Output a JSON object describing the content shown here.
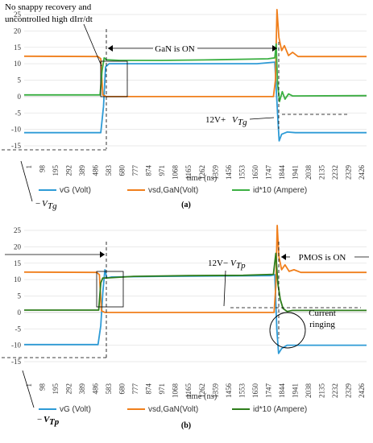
{
  "chart_data": [
    {
      "type": "line",
      "caption": "(a)",
      "xlabel": "time (ns)",
      "ylabel": "",
      "ylim": [
        -15,
        25
      ],
      "yticks": [
        -15,
        -10,
        -5,
        0,
        5,
        10,
        15,
        20,
        25
      ],
      "xticks": [
        "1",
        "98",
        "195",
        "292",
        "389",
        "486",
        "583",
        "680",
        "777",
        "874",
        "971",
        "1068",
        "1165",
        "1262",
        "1359",
        "1456",
        "1553",
        "1650",
        "1747",
        "1844",
        "1941",
        "2038",
        "2135",
        "2232",
        "2329",
        "2426"
      ],
      "legend_position": "bottom",
      "grid": "horizontal",
      "series": [
        {
          "name": "vG (Volt)",
          "color": "#2e9bd6",
          "points": [
            [
              1,
              -11
            ],
            [
              560,
              -11
            ],
            [
              580,
              -3
            ],
            [
              595,
              9
            ],
            [
              620,
              10
            ],
            [
              700,
              10
            ],
            [
              1400,
              10
            ],
            [
              1700,
              10
            ],
            [
              1830,
              10.5
            ],
            [
              1850,
              -5
            ],
            [
              1862,
              -13.5
            ],
            [
              1880,
              -11.5
            ],
            [
              1920,
              -10.8
            ],
            [
              1980,
              -11
            ],
            [
              2500,
              -11
            ]
          ]
        },
        {
          "name": "vsd,GaN(Volt)",
          "color": "#f07f1c",
          "points": [
            [
              1,
              12.3
            ],
            [
              540,
              12.2
            ],
            [
              560,
              11.5
            ],
            [
              575,
              0.5
            ],
            [
              600,
              0
            ],
            [
              1000,
              0
            ],
            [
              1820,
              0
            ],
            [
              1835,
              5
            ],
            [
              1846,
              26.5
            ],
            [
              1860,
              18
            ],
            [
              1880,
              14
            ],
            [
              1900,
              15.5
            ],
            [
              1930,
              12.5
            ],
            [
              1960,
              13.5
            ],
            [
              2000,
              12.2
            ],
            [
              2500,
              12.2
            ]
          ]
        },
        {
          "name": "id*10 (Ampere)",
          "color": "#3cb043",
          "points": [
            [
              1,
              0.5
            ],
            [
              555,
              0.5
            ],
            [
              570,
              8
            ],
            [
              585,
              11.8
            ],
            [
              600,
              11.2
            ],
            [
              700,
              11
            ],
            [
              1000,
              11
            ],
            [
              1400,
              11.2
            ],
            [
              1780,
              11.5
            ],
            [
              1830,
              11.8
            ],
            [
              1840,
              16
            ],
            [
              1850,
              4
            ],
            [
              1865,
              -1.5
            ],
            [
              1885,
              1.5
            ],
            [
              1905,
              -0.8
            ],
            [
              1930,
              0.8
            ],
            [
              1960,
              0.2
            ],
            [
              2500,
              0.3
            ]
          ]
        }
      ],
      "annotations": [
        "No snappy recovery and",
        "uncontrolled high dIrr/dt",
        "GaN is ON",
        "12V+",
        "−"
      ],
      "annotation_symbol": "VTg",
      "annotation_subscript": "Tg"
    },
    {
      "type": "line",
      "caption": "(b)",
      "xlabel": "time (ns)",
      "ylabel": "",
      "ylim": [
        -15,
        25
      ],
      "yticks": [
        -15,
        -10,
        -5,
        0,
        5,
        10,
        15,
        20,
        25
      ],
      "xticks": [
        "1",
        "98",
        "195",
        "292",
        "389",
        "486",
        "583",
        "680",
        "777",
        "874",
        "971",
        "1068",
        "1165",
        "1262",
        "1359",
        "1456",
        "1553",
        "1650",
        "1747",
        "1844",
        "1941",
        "2038",
        "2135",
        "2232",
        "2329",
        "2426"
      ],
      "legend_position": "bottom",
      "grid": "horizontal",
      "series": [
        {
          "name": "vG (Volt)",
          "color": "#2e9bd6",
          "points": [
            [
              1,
              -9.8
            ],
            [
              540,
              -9.8
            ],
            [
              560,
              -4
            ],
            [
              575,
              6
            ],
            [
              590,
              13
            ],
            [
              605,
              10.5
            ],
            [
              640,
              10.8
            ],
            [
              1000,
              11
            ],
            [
              1800,
              11.2
            ],
            [
              1830,
              11.5
            ],
            [
              1845,
              -5
            ],
            [
              1858,
              -12.5
            ],
            [
              1880,
              -11
            ],
            [
              1920,
              -10
            ],
            [
              1980,
              -10
            ],
            [
              2500,
              -10
            ]
          ]
        },
        {
          "name": "vsd,GaN(Volt)",
          "color": "#f07f1c",
          "points": [
            [
              1,
              12.3
            ],
            [
              530,
              12.2
            ],
            [
              550,
              11.5
            ],
            [
              565,
              0.5
            ],
            [
              590,
              0
            ],
            [
              1000,
              0
            ],
            [
              1825,
              0
            ],
            [
              1838,
              8
            ],
            [
              1848,
              26.5
            ],
            [
              1860,
              17
            ],
            [
              1880,
              13
            ],
            [
              1905,
              14.5
            ],
            [
              1935,
              12.5
            ],
            [
              1970,
              13
            ],
            [
              2020,
              12.2
            ],
            [
              2500,
              12.2
            ]
          ]
        },
        {
          "name": "id*10 (Ampere)",
          "color": "#2e7d1b",
          "points": [
            [
              1,
              0.7
            ],
            [
              545,
              0.7
            ],
            [
              560,
              9
            ],
            [
              575,
              10.5
            ],
            [
              600,
              10.5
            ],
            [
              800,
              11
            ],
            [
              1200,
              11.2
            ],
            [
              1600,
              11.3
            ],
            [
              1820,
              11.6
            ],
            [
              1838,
              18
            ],
            [
              1852,
              9
            ],
            [
              1870,
              4
            ],
            [
              1890,
              1.2
            ],
            [
              1920,
              0.3
            ],
            [
              1960,
              0.6
            ],
            [
              2500,
              0.6
            ]
          ]
        }
      ],
      "annotations": [
        "12V",
        "PMOS is ON",
        "Current",
        "ringing",
        "−"
      ],
      "annotation_symbol": "VTp",
      "annotation_subscript": "Tp"
    }
  ]
}
